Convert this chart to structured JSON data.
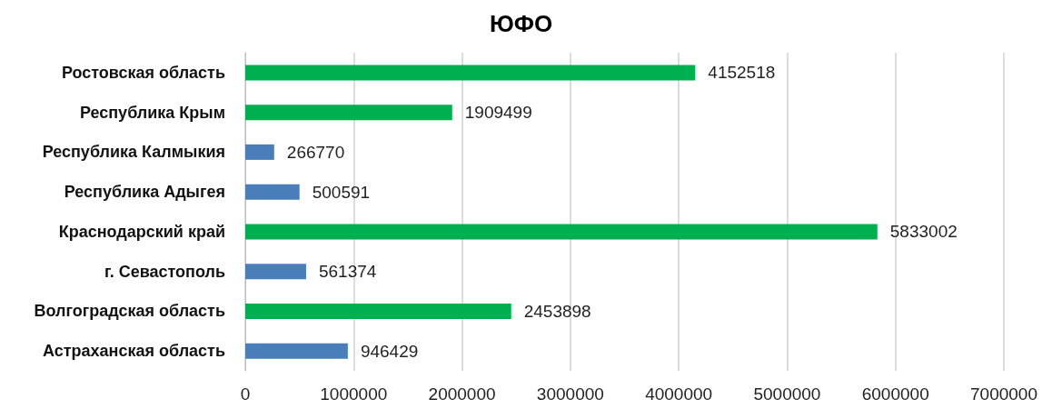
{
  "chart_data": {
    "type": "bar",
    "title": "ЮФО",
    "orientation": "horizontal",
    "categories": [
      "Ростовская область",
      "Республика Крым",
      "Республика Калмыкия",
      "Республика Адыгея",
      "Краснодарский край",
      "г. Севастополь",
      "Волгоградская область",
      "Астраханская область"
    ],
    "values": [
      4152518,
      1909499,
      266770,
      500591,
      5833002,
      561374,
      2453898,
      946429
    ],
    "colors": [
      "#00b050",
      "#00b050",
      "#4a7ebb",
      "#4a7ebb",
      "#00b050",
      "#4a7ebb",
      "#00b050",
      "#4a7ebb"
    ],
    "xlim": [
      0,
      7000000
    ],
    "xticks": [
      0,
      1000000,
      2000000,
      3000000,
      4000000,
      5000000,
      6000000,
      7000000
    ],
    "grid": "x",
    "data_labels": true
  }
}
